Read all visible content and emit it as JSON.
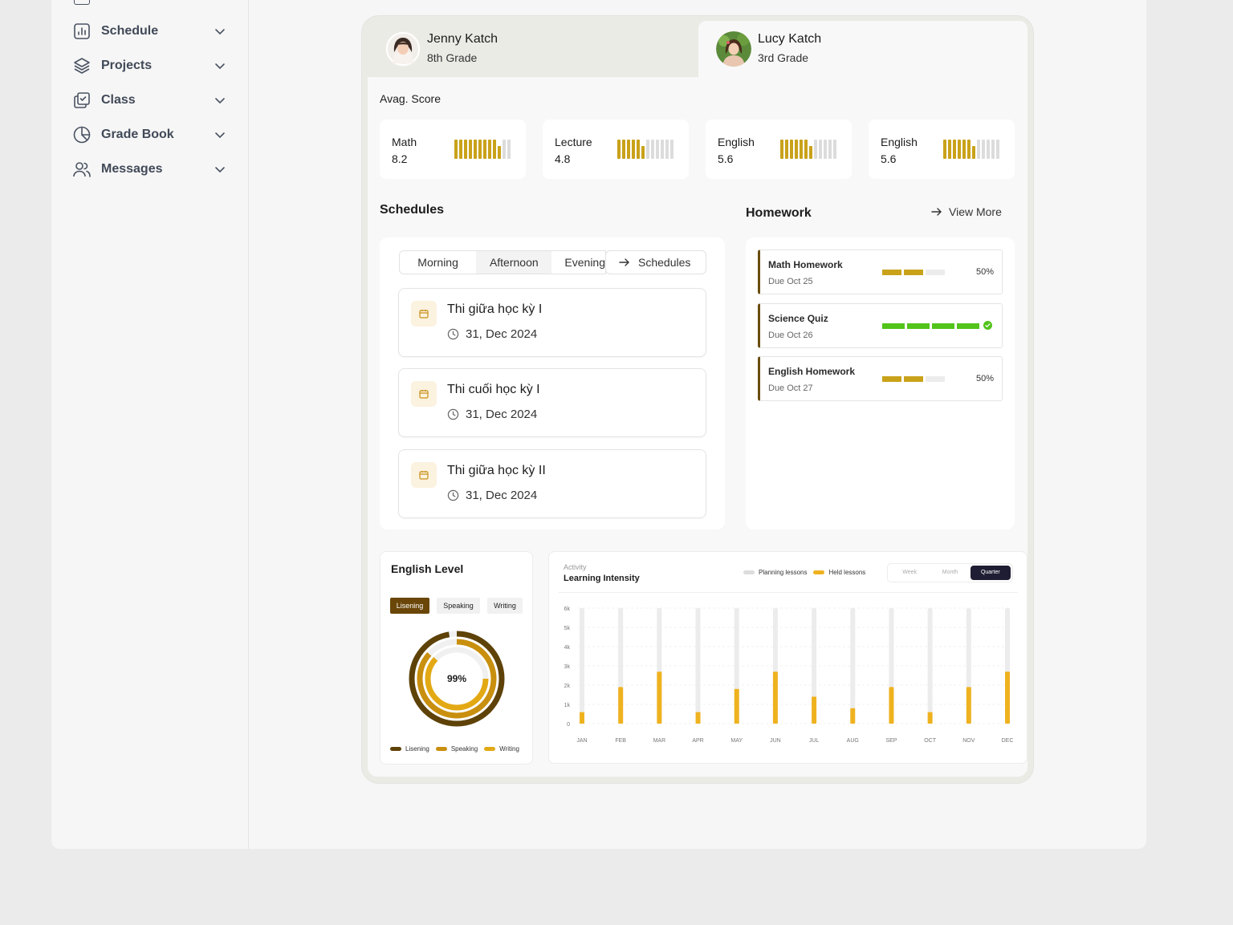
{
  "sidebar": {
    "items": [
      {
        "label": "Schedule",
        "icon": "chart-bar-icon"
      },
      {
        "label": "Projects",
        "icon": "layers-icon"
      },
      {
        "label": "Class",
        "icon": "copy-check-icon"
      },
      {
        "label": "Grade Book",
        "icon": "pie-chart-icon"
      },
      {
        "label": "Messages",
        "icon": "users-icon"
      }
    ]
  },
  "students": [
    {
      "name": "Jenny Katch",
      "grade": "8th Grade"
    },
    {
      "name": "Lucy Katch",
      "grade": "3rd Grade"
    }
  ],
  "scores": {
    "title": "Avag. Score",
    "cards": [
      {
        "subject": "Math",
        "value": "8.2",
        "level": 0.82
      },
      {
        "subject": "Lecture",
        "value": "4.8",
        "level": 0.48
      },
      {
        "subject": "English",
        "value": "5.6",
        "level": 0.56
      },
      {
        "subject": "English",
        "value": "5.6",
        "level": 0.56
      }
    ],
    "accent": "#c9a21a"
  },
  "schedules": {
    "title": "Schedules",
    "tabs": [
      "Morning",
      "Afternoon",
      "Evening"
    ],
    "button": "Schedules",
    "events": [
      {
        "title": "Thi giữa học kỳ I",
        "date": "31, Dec 2024"
      },
      {
        "title": "Thi cuối học kỳ I",
        "date": "31, Dec 2024"
      },
      {
        "title": "Thi giữa học kỳ II",
        "date": "31, Dec 2024"
      }
    ]
  },
  "homework": {
    "title": "Homework",
    "view_more": "View More",
    "items": [
      {
        "title": "Math Homework",
        "due": "Due Oct 25",
        "progress": 0.5,
        "label": "50%"
      },
      {
        "title": "Science Quiz",
        "due": "Due Oct 26",
        "progress": 1.0,
        "label": ""
      },
      {
        "title": "English Homework",
        "due": "Due Oct 27",
        "progress": 0.5,
        "label": "50%"
      }
    ],
    "colors": {
      "partial": "#c9a21a",
      "complete": "#52c41a"
    }
  },
  "english_level": {
    "title": "English Level",
    "tabs": [
      "Lisening",
      "Speaking",
      "Writing"
    ],
    "active_tab": "Lisening",
    "center_label": "99%",
    "legend": [
      "Lisening",
      "Speaking",
      "Writing"
    ],
    "colors": [
      "#5e4208",
      "#c98f0e",
      "#e3a914"
    ]
  },
  "learning_intensity": {
    "kicker": "Activity",
    "title": "Learning Intensity",
    "legend": [
      "Planning lessons",
      "Held lessons"
    ],
    "periods": [
      "Week",
      "Month",
      "Quarter"
    ],
    "active_period": "Quarter"
  },
  "chart_data": {
    "type": "bar",
    "categories": [
      "JAN",
      "FEB",
      "MAR",
      "APR",
      "MAY",
      "JUN",
      "JUL",
      "AUG",
      "SEP",
      "OCT",
      "NOV",
      "DEC"
    ],
    "y_ticks": [
      "0",
      "1k",
      "2k",
      "3k",
      "4k",
      "5k",
      "6k"
    ],
    "ylim": [
      0,
      6000
    ],
    "series": [
      {
        "name": "Planning lessons",
        "values": [
          6000,
          6000,
          6000,
          6000,
          6000,
          6000,
          6000,
          6000,
          6000,
          6000,
          6000,
          6000
        ],
        "color": "#ececec"
      },
      {
        "name": "Held lessons",
        "values": [
          600,
          1900,
          2700,
          600,
          1800,
          2700,
          1400,
          800,
          1900,
          600,
          1900,
          2700
        ],
        "color": "#efb21f"
      }
    ]
  }
}
